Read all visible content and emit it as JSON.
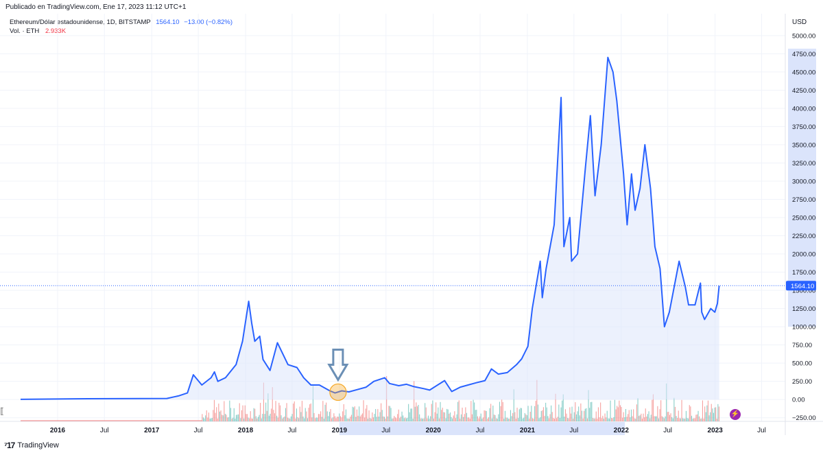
{
  "header": {
    "published": "Publicado en TradingView.com, Ene 17, 2023 11:12 UTC+1"
  },
  "legend": {
    "symbol": "Ethereum/Dólar estadounidense, 1D, BITSTAMP",
    "price": "1564.10",
    "change": "−13.00 (−0.82%)",
    "vol_label": "Vol. · ETH",
    "vol_value": "2.933K"
  },
  "axis": {
    "currency": "USD",
    "last_price_tag": "1564.10"
  },
  "footer": {
    "brand": "TradingView"
  },
  "icons": {
    "flash": "lightning-icon",
    "arrow": "down-arrow-icon",
    "logo": "tradingview-logo-icon"
  },
  "colors": {
    "line": "#2962ff",
    "area": "#dde6fb",
    "vol_up": "#26a69a",
    "vol_down": "#ef5350",
    "highlight": "#f5a623"
  },
  "chart_data": {
    "type": "area",
    "title": "Ethereum/Dólar estadounidense, 1D, BITSTAMP",
    "ylabel": "USD",
    "ylim": [
      -300,
      5300
    ],
    "yticks": [
      -250,
      0,
      250,
      500,
      750,
      1000,
      1250,
      1500,
      1750,
      2000,
      2250,
      2500,
      2750,
      3000,
      3250,
      3500,
      3750,
      4000,
      4250,
      4500,
      4750,
      5000
    ],
    "ytick_labels": [
      "−250.00",
      "0.00",
      "250.00",
      "500.00",
      "750.00",
      "1000.00",
      "1250.00",
      "1500.00",
      "1750.00",
      "2000.00",
      "2250.00",
      "2500.00",
      "2750.00",
      "3000.00",
      "3250.00",
      "3500.00",
      "3750.00",
      "4000.00",
      "4250.00",
      "4500.00",
      "4750.00",
      "5000.00"
    ],
    "xticks": [
      {
        "label": "2016",
        "date": "2016-01-01",
        "bold": true
      },
      {
        "label": "Jul",
        "date": "2016-07-01"
      },
      {
        "label": "2017",
        "date": "2017-01-01",
        "bold": true
      },
      {
        "label": "Jul",
        "date": "2017-07-01"
      },
      {
        "label": "2018",
        "date": "2018-01-01",
        "bold": true
      },
      {
        "label": "Jul",
        "date": "2018-07-01"
      },
      {
        "label": "2019",
        "date": "2019-01-01",
        "bold": true
      },
      {
        "label": "Jul",
        "date": "2019-07-01"
      },
      {
        "label": "2020",
        "date": "2020-01-01",
        "bold": true
      },
      {
        "label": "Jul",
        "date": "2020-07-01"
      },
      {
        "label": "2021",
        "date": "2021-01-01",
        "bold": true
      },
      {
        "label": "Jul",
        "date": "2021-07-01"
      },
      {
        "label": "2022",
        "date": "2022-01-01",
        "bold": true
      },
      {
        "label": "Jul",
        "date": "2022-07-01"
      },
      {
        "label": "2023",
        "date": "2023-01-01",
        "bold": true
      },
      {
        "label": "Jul",
        "date": "2023-07-01"
      }
    ],
    "x_range": [
      "2015-08-10",
      "2023-10-01"
    ],
    "series": [
      {
        "x": [
          "2015-08-10",
          "2016-03-15",
          "2017-03-01",
          "2017-04-15",
          "2017-05-20",
          "2017-06-12",
          "2017-07-15",
          "2017-08-20",
          "2017-09-02",
          "2017-09-15",
          "2017-10-15",
          "2017-11-25",
          "2017-12-20",
          "2018-01-13",
          "2018-01-25",
          "2018-02-06",
          "2018-02-25",
          "2018-03-10",
          "2018-04-06",
          "2018-04-25",
          "2018-05-05",
          "2018-06-15",
          "2018-07-20",
          "2018-08-15",
          "2018-09-12",
          "2018-10-15",
          "2018-11-25",
          "2018-12-15",
          "2019-01-10",
          "2019-02-07",
          "2019-03-15",
          "2019-04-15",
          "2019-05-15",
          "2019-06-26",
          "2019-07-15",
          "2019-08-20",
          "2019-09-19",
          "2019-10-15",
          "2019-11-25",
          "2019-12-18",
          "2020-02-14",
          "2020-03-13",
          "2020-04-15",
          "2020-05-15",
          "2020-06-15",
          "2020-07-20",
          "2020-08-14",
          "2020-09-10",
          "2020-10-15",
          "2020-11-20",
          "2020-12-10",
          "2021-01-03",
          "2021-01-20",
          "2021-02-20",
          "2021-02-28",
          "2021-03-15",
          "2021-04-15",
          "2021-05-12",
          "2021-05-23",
          "2021-06-15",
          "2021-06-22",
          "2021-07-15",
          "2021-08-15",
          "2021-09-03",
          "2021-09-21",
          "2021-10-15",
          "2021-11-10",
          "2021-11-30",
          "2021-12-15",
          "2022-01-10",
          "2022-01-24",
          "2022-02-10",
          "2022-02-24",
          "2022-03-15",
          "2022-04-03",
          "2022-04-25",
          "2022-05-12",
          "2022-06-01",
          "2022-06-18",
          "2022-07-07",
          "2022-08-14",
          "2022-09-07",
          "2022-09-20",
          "2022-10-15",
          "2022-11-05",
          "2022-11-10",
          "2022-11-21",
          "2022-12-15",
          "2022-12-31",
          "2023-01-10",
          "2023-01-17"
        ],
        "y": [
          3,
          10,
          15,
          50,
          90,
          340,
          200,
          300,
          380,
          250,
          300,
          480,
          800,
          1350,
          1050,
          800,
          870,
          550,
          400,
          650,
          780,
          480,
          440,
          300,
          200,
          200,
          120,
          90,
          120,
          105,
          140,
          170,
          250,
          300,
          220,
          190,
          210,
          180,
          150,
          130,
          260,
          110,
          170,
          200,
          230,
          260,
          420,
          350,
          370,
          480,
          560,
          730,
          1250,
          1900,
          1400,
          1800,
          2400,
          4150,
          2100,
          2500,
          1900,
          2000,
          3200,
          3900,
          2800,
          3500,
          4700,
          4500,
          4100,
          3100,
          2400,
          3100,
          2600,
          2900,
          3500,
          2900,
          2100,
          1800,
          1000,
          1200,
          1900,
          1550,
          1300,
          1300,
          1600,
          1200,
          1100,
          1250,
          1200,
          1320,
          1564
        ]
      }
    ],
    "last_value": 1564.1,
    "annotation": {
      "type": "arrow-and-circle",
      "date": "2019-01-01",
      "value": 120
    }
  }
}
